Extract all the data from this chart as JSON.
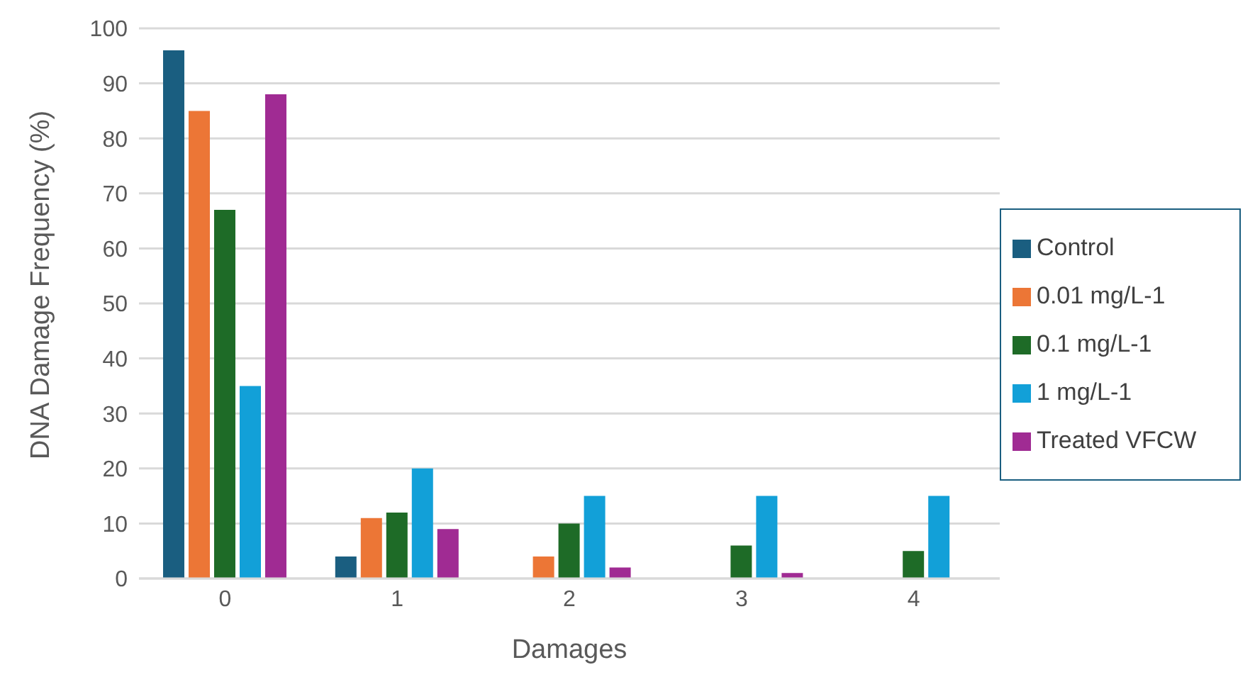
{
  "chart_data": {
    "type": "bar",
    "xlabel": "Damages",
    "ylabel": "DNA Damage Frequency (%)",
    "categories": [
      "0",
      "1",
      "2",
      "3",
      "4"
    ],
    "series": [
      {
        "name": "Control",
        "color": "#1a5e80",
        "values": [
          96,
          4,
          0,
          0,
          0
        ]
      },
      {
        "name": "0.01 mg/L-1",
        "color": "#ec7636",
        "values": [
          85,
          11,
          4,
          0,
          0
        ]
      },
      {
        "name": "0.1 mg/L-1",
        "color": "#1e6b27",
        "values": [
          67,
          12,
          10,
          6,
          5
        ]
      },
      {
        "name": "1 mg/L-1",
        "color": "#12a0d8",
        "values": [
          35,
          20,
          15,
          15,
          15
        ]
      },
      {
        "name": "Treated VFCW",
        "color": "#a02b93",
        "values": [
          88,
          9,
          2,
          1,
          0
        ]
      }
    ],
    "ylim": [
      0,
      100
    ],
    "yticks": [
      0,
      10,
      20,
      30,
      40,
      50,
      60,
      70,
      80,
      90,
      100
    ],
    "grid": "y",
    "legend": "right"
  }
}
